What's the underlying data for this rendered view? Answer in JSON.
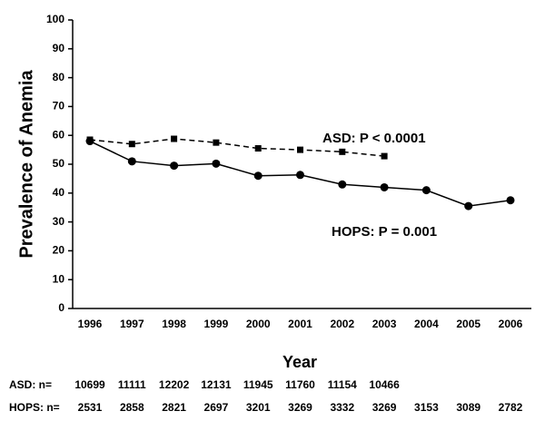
{
  "chart_data": {
    "type": "line",
    "y_label": "Prevalence of Anemia",
    "x_label": "Year",
    "categories": [
      "1996",
      "1997",
      "1998",
      "1999",
      "2000",
      "2001",
      "2002",
      "2003",
      "2004",
      "2005",
      "2006"
    ],
    "series": [
      {
        "color": "#000000",
        "marker": "circle",
        "dash": false,
        "values": [
          58,
          51,
          49.5,
          50.2,
          46,
          46.3,
          43,
          42,
          41,
          35.5,
          37.5
        ]
      },
      {
        "color": "#000000",
        "marker": "square",
        "dash": true,
        "values": [
          58.5,
          57,
          58.8,
          57.5,
          55.5,
          55,
          54.3,
          52.8,
          null,
          null,
          null
        ]
      }
    ],
    "annotations": [
      "ASD: P < 0.0001",
      "HOPS: P = 0.001"
    ],
    "n_rows": [
      {
        "label": "ASD: n=",
        "values": [
          10699,
          11111,
          12202,
          12131,
          11945,
          11760,
          11154,
          10466,
          null,
          null,
          null
        ]
      },
      {
        "label": "HOPS: n=",
        "values": [
          2531,
          2858,
          2821,
          2697,
          3201,
          3269,
          3332,
          3269,
          3153,
          3089,
          2782
        ]
      }
    ],
    "ylim": [
      0,
      100
    ],
    "yticks": [
      0,
      10,
      20,
      30,
      40,
      50,
      60,
      70,
      80,
      90,
      100
    ],
    "grid": false
  }
}
